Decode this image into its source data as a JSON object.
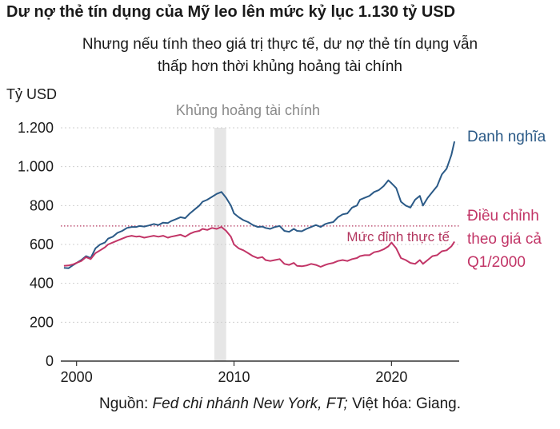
{
  "header": {
    "title": "Dư nợ thẻ tín dụng của Mỹ leo lên mức kỷ lục 1.130 tỷ USD",
    "subtitle_line1": "Nhưng nếu tính theo giá trị thực tế, dư nợ thẻ tín dụng vẫn",
    "subtitle_line2": "thấp hơn thời khủng hoảng tài chính"
  },
  "source": {
    "prefix": "Nguồn: ",
    "italic": "Fed chi nhánh New York, FT;",
    "suffix": " Việt hóa: Giang."
  },
  "colors": {
    "nominal": "#2b5a87",
    "real": "#c23567",
    "reference": "#b3365f",
    "crisis_band": "#e6e6e6",
    "grid": "#cfcfcf"
  },
  "chart_data": {
    "type": "line",
    "ylabel": "Tỷ USD",
    "ylim": [
      0,
      1200
    ],
    "xlim": [
      1999,
      2024.3
    ],
    "y_ticks": [
      0,
      200,
      400,
      600,
      800,
      1000,
      1200
    ],
    "y_tick_labels": [
      "0",
      "200",
      "400",
      "600",
      "800",
      "1.000",
      "1.200"
    ],
    "x_ticks": [
      2000,
      2010,
      2020
    ],
    "x_tick_labels": [
      "2000",
      "2010",
      "2020"
    ],
    "grid": true,
    "shaded_period": {
      "label": "Khủng hoảng tài chính",
      "start": 2008.75,
      "end": 2009.5
    },
    "reference_line": {
      "label": "Mức đỉnh thực tế",
      "value": 695
    },
    "series": [
      {
        "name": "Danh nghĩa",
        "x": [
          1999.2,
          1999.5,
          1999.8,
          2000.0,
          2000.3,
          2000.6,
          2000.9,
          2001.2,
          2001.5,
          2001.8,
          2002.0,
          2002.3,
          2002.6,
          2002.9,
          2003.2,
          2003.5,
          2003.8,
          2004.0,
          2004.3,
          2004.6,
          2004.9,
          2005.2,
          2005.5,
          2005.8,
          2006.0,
          2006.3,
          2006.6,
          2006.9,
          2007.2,
          2007.5,
          2007.8,
          2008.0,
          2008.3,
          2008.6,
          2008.9,
          2009.2,
          2009.5,
          2009.8,
          2010.0,
          2010.3,
          2010.6,
          2010.9,
          2011.2,
          2011.5,
          2011.8,
          2012.0,
          2012.3,
          2012.6,
          2012.9,
          2013.2,
          2013.5,
          2013.8,
          2014.0,
          2014.3,
          2014.6,
          2014.9,
          2015.2,
          2015.5,
          2015.8,
          2016.0,
          2016.3,
          2016.6,
          2016.9,
          2017.2,
          2017.5,
          2017.8,
          2018.0,
          2018.3,
          2018.6,
          2018.9,
          2019.2,
          2019.5,
          2019.8,
          2020.0,
          2020.3,
          2020.6,
          2020.9,
          2021.2,
          2021.5,
          2021.8,
          2022.0,
          2022.3,
          2022.6,
          2022.9,
          2023.2,
          2023.5,
          2023.8,
          2024.0
        ],
        "values": [
          480,
          478,
          495,
          505,
          520,
          540,
          530,
          580,
          600,
          610,
          630,
          640,
          660,
          670,
          685,
          690,
          690,
          695,
          692,
          698,
          705,
          700,
          712,
          710,
          720,
          730,
          740,
          735,
          760,
          780,
          800,
          820,
          830,
          845,
          860,
          870,
          840,
          800,
          760,
          740,
          725,
          715,
          700,
          690,
          692,
          685,
          680,
          690,
          695,
          670,
          665,
          680,
          670,
          668,
          680,
          690,
          700,
          690,
          705,
          710,
          715,
          740,
          755,
          760,
          790,
          800,
          830,
          840,
          850,
          870,
          880,
          900,
          930,
          915,
          890,
          820,
          800,
          790,
          830,
          850,
          800,
          840,
          870,
          900,
          960,
          990,
          1060,
          1130
        ]
      },
      {
        "name": "Điều chỉnh theo giá cả Q1/2000",
        "x": [
          1999.2,
          1999.5,
          1999.8,
          2000.0,
          2000.3,
          2000.6,
          2000.9,
          2001.2,
          2001.5,
          2001.8,
          2002.0,
          2002.3,
          2002.6,
          2002.9,
          2003.2,
          2003.5,
          2003.8,
          2004.0,
          2004.3,
          2004.6,
          2004.9,
          2005.2,
          2005.5,
          2005.8,
          2006.0,
          2006.3,
          2006.6,
          2006.9,
          2007.2,
          2007.5,
          2007.8,
          2008.0,
          2008.3,
          2008.6,
          2008.9,
          2009.2,
          2009.5,
          2009.8,
          2010.0,
          2010.3,
          2010.6,
          2010.9,
          2011.2,
          2011.5,
          2011.8,
          2012.0,
          2012.3,
          2012.6,
          2012.9,
          2013.2,
          2013.5,
          2013.8,
          2014.0,
          2014.3,
          2014.6,
          2014.9,
          2015.2,
          2015.5,
          2015.8,
          2016.0,
          2016.3,
          2016.6,
          2016.9,
          2017.2,
          2017.5,
          2017.8,
          2018.0,
          2018.3,
          2018.6,
          2018.9,
          2019.2,
          2019.5,
          2019.8,
          2020.0,
          2020.3,
          2020.6,
          2020.9,
          2021.2,
          2021.5,
          2021.8,
          2022.0,
          2022.3,
          2022.6,
          2022.9,
          2023.2,
          2023.5,
          2023.8,
          2024.0
        ],
        "values": [
          490,
          492,
          498,
          505,
          515,
          535,
          525,
          555,
          570,
          585,
          600,
          610,
          620,
          630,
          640,
          645,
          640,
          642,
          635,
          640,
          645,
          640,
          645,
          635,
          640,
          645,
          650,
          640,
          655,
          665,
          670,
          680,
          675,
          685,
          680,
          690,
          670,
          640,
          600,
          580,
          570,
          555,
          540,
          530,
          535,
          520,
          515,
          520,
          525,
          500,
          495,
          505,
          490,
          488,
          492,
          500,
          495,
          485,
          495,
          500,
          505,
          515,
          520,
          515,
          525,
          530,
          540,
          545,
          545,
          560,
          565,
          575,
          590,
          610,
          580,
          530,
          520,
          505,
          500,
          520,
          500,
          520,
          540,
          545,
          565,
          570,
          590,
          615
        ]
      }
    ],
    "series_labels": {
      "nominal": [
        "Danh nghĩa"
      ],
      "real": [
        "Điều chỉnh",
        "theo giá cả",
        "Q1/2000"
      ]
    }
  }
}
